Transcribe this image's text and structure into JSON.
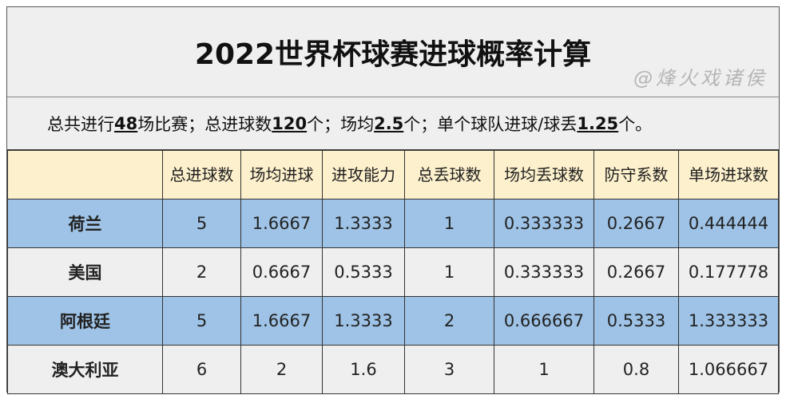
{
  "title": "2022世界杯球赛进球概率计算",
  "summary": {
    "p1": "总共进行",
    "v1": "48",
    "p2": "场比赛；总进球数",
    "v2": "120",
    "p3": "个；场均",
    "v3": "2.5",
    "p4": "个；单个球队进球/球丢",
    "v4": "1.25",
    "p5": "个。"
  },
  "headers": [
    "",
    "总进球数",
    "场均进球",
    "进攻能力",
    "总丢球数",
    "场均丢球数",
    "防守系数",
    "单场进球数"
  ],
  "rows": [
    [
      "荷兰",
      "5",
      "1.6667",
      "1.3333",
      "1",
      "0.333333",
      "0.2667",
      "0.444444"
    ],
    [
      "美国",
      "2",
      "0.6667",
      "0.5333",
      "1",
      "0.333333",
      "0.2667",
      "0.177778"
    ],
    [
      "阿根廷",
      "5",
      "1.6667",
      "1.3333",
      "2",
      "0.666667",
      "0.5333",
      "1.333333"
    ],
    [
      "澳大利亚",
      "6",
      "2",
      "1.6",
      "3",
      "1",
      "0.8",
      "1.066667"
    ]
  ],
  "watermark": "@烽火戏诸侯",
  "colors": {
    "header_bg": "#fdf0cc",
    "highlight_row": "#9ec3e6",
    "plain_row": "#efefef"
  }
}
